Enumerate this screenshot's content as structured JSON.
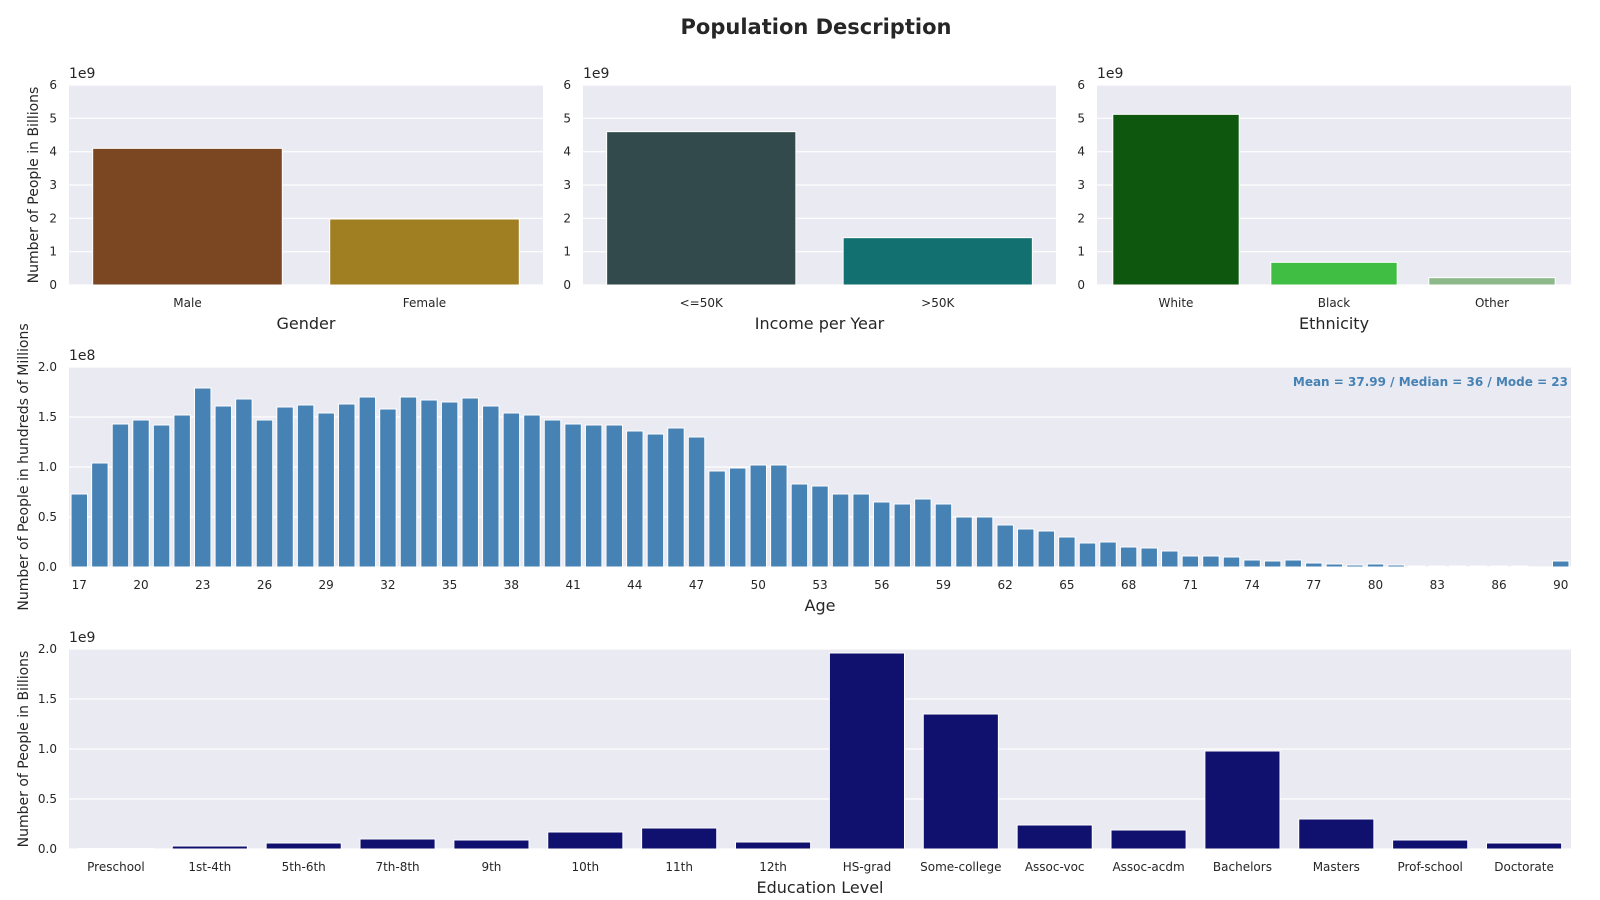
{
  "figure": {
    "title": "Population Description"
  },
  "colors": {
    "panel_bg": "#eaeaf2",
    "grid": "#ffffff"
  },
  "chart_data": [
    {
      "id": "gender",
      "type": "bar",
      "title": "",
      "xlabel": "Gender",
      "ylabel": "Number of People in Billions",
      "offset_label": "1e9",
      "categories": [
        "Male",
        "Female"
      ],
      "values": [
        4.1,
        1.98
      ],
      "ylim": [
        0,
        6
      ],
      "yticks": [
        0,
        1,
        2,
        3,
        4,
        5,
        6
      ],
      "ytick_labels": [
        "0",
        "1",
        "2",
        "3",
        "4",
        "5",
        "6"
      ],
      "colors": [
        "#7b4622",
        "#a07e22"
      ],
      "grid": true
    },
    {
      "id": "income",
      "type": "bar",
      "title": "",
      "xlabel": "Income per Year",
      "ylabel": "",
      "offset_label": "1e9",
      "categories": [
        "<=50K",
        ">50K"
      ],
      "values": [
        4.6,
        1.42
      ],
      "ylim": [
        0,
        6
      ],
      "yticks": [
        0,
        1,
        2,
        3,
        4,
        5,
        6
      ],
      "ytick_labels": [
        "0",
        "1",
        "2",
        "3",
        "4",
        "5",
        "6"
      ],
      "colors": [
        "#324a4c",
        "#127070"
      ],
      "grid": true
    },
    {
      "id": "ethnicity",
      "type": "bar",
      "title": "",
      "xlabel": "Ethnicity",
      "ylabel": "",
      "offset_label": "1e9",
      "categories": [
        "White",
        "Black",
        "Other"
      ],
      "values": [
        5.12,
        0.68,
        0.22
      ],
      "ylim": [
        0,
        6
      ],
      "yticks": [
        0,
        1,
        2,
        3,
        4,
        5,
        6
      ],
      "ytick_labels": [
        "0",
        "1",
        "2",
        "3",
        "4",
        "5",
        "6"
      ],
      "colors": [
        "#0e570e",
        "#40bd43",
        "#8db88a"
      ],
      "grid": true
    },
    {
      "id": "age",
      "type": "bar",
      "title": "",
      "xlabel": "Age",
      "ylabel": "Number of People in hundreds of Millions",
      "offset_label": "1e8",
      "annotation": "Mean = 37.99 / Median = 36 / Mode = 23",
      "annotation_color": "#4682b4",
      "categories": [
        "17",
        "18",
        "19",
        "20",
        "21",
        "22",
        "23",
        "24",
        "25",
        "26",
        "27",
        "28",
        "29",
        "30",
        "31",
        "32",
        "33",
        "34",
        "35",
        "36",
        "37",
        "38",
        "39",
        "40",
        "41",
        "42",
        "43",
        "44",
        "45",
        "46",
        "47",
        "48",
        "49",
        "50",
        "51",
        "52",
        "53",
        "54",
        "55",
        "56",
        "57",
        "58",
        "59",
        "60",
        "61",
        "62",
        "63",
        "64",
        "65",
        "66",
        "67",
        "68",
        "69",
        "70",
        "71",
        "72",
        "73",
        "74",
        "75",
        "76",
        "77",
        "78",
        "79",
        "80",
        "81",
        "82",
        "83",
        "84",
        "85",
        "86",
        "87",
        "88",
        "90"
      ],
      "xtick_labels_shown": [
        "17",
        "20",
        "23",
        "26",
        "29",
        "32",
        "35",
        "38",
        "41",
        "44",
        "47",
        "50",
        "53",
        "56",
        "59",
        "62",
        "65",
        "68",
        "71",
        "74",
        "77",
        "80",
        "83",
        "86",
        "90"
      ],
      "values": [
        0.73,
        1.04,
        1.43,
        1.47,
        1.42,
        1.52,
        1.79,
        1.61,
        1.68,
        1.47,
        1.6,
        1.62,
        1.54,
        1.63,
        1.7,
        1.58,
        1.7,
        1.67,
        1.65,
        1.69,
        1.61,
        1.54,
        1.52,
        1.47,
        1.43,
        1.42,
        1.42,
        1.36,
        1.33,
        1.39,
        1.3,
        0.96,
        0.99,
        1.02,
        1.02,
        0.83,
        0.81,
        0.73,
        0.73,
        0.65,
        0.63,
        0.68,
        0.63,
        0.5,
        0.5,
        0.42,
        0.38,
        0.36,
        0.3,
        0.24,
        0.25,
        0.2,
        0.19,
        0.16,
        0.11,
        0.11,
        0.1,
        0.07,
        0.06,
        0.07,
        0.04,
        0.03,
        0.02,
        0.03,
        0.02,
        0.01,
        0.01,
        0.01,
        0.01,
        0.01,
        0.01,
        0.0,
        0.06
      ],
      "ylim": [
        0,
        2.0
      ],
      "yticks": [
        0,
        0.5,
        1.0,
        1.5,
        2.0
      ],
      "ytick_labels": [
        "0.0",
        "0.5",
        "1.0",
        "1.5",
        "2.0"
      ],
      "colors": [
        "#4682b4"
      ],
      "grid": true
    },
    {
      "id": "education",
      "type": "bar",
      "title": "",
      "xlabel": "Education Level",
      "ylabel": "Number of People in Billions",
      "offset_label": "1e9",
      "categories": [
        "Preschool",
        "1st-4th",
        "5th-6th",
        "7th-8th",
        "9th",
        "10th",
        "11th",
        "12th",
        "HS-grad",
        "Some-college",
        "Assoc-voc",
        "Assoc-acdm",
        "Bachelors",
        "Masters",
        "Prof-school",
        "Doctorate"
      ],
      "values": [
        0.005,
        0.03,
        0.06,
        0.1,
        0.09,
        0.17,
        0.21,
        0.07,
        1.96,
        1.35,
        0.24,
        0.19,
        0.98,
        0.3,
        0.09,
        0.06
      ],
      "ylim": [
        0,
        2.0
      ],
      "yticks": [
        0,
        0.5,
        1.0,
        1.5,
        2.0
      ],
      "ytick_labels": [
        "0.0",
        "0.5",
        "1.0",
        "1.5",
        "2.0"
      ],
      "colors": [
        "#10106e"
      ],
      "grid": true
    }
  ]
}
